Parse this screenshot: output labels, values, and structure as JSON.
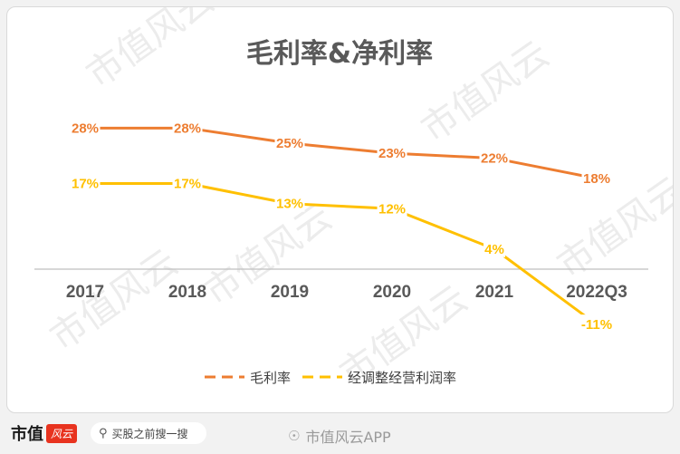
{
  "chart_data": {
    "type": "line",
    "title": "毛利率&净利率",
    "categories": [
      "2017",
      "2018",
      "2019",
      "2020",
      "2021",
      "2022Q3"
    ],
    "series": [
      {
        "name": "毛利率",
        "values": [
          28,
          28,
          25,
          23,
          22,
          18
        ],
        "labels": [
          "28%",
          "28%",
          "25%",
          "23%",
          "22%",
          "18%"
        ],
        "color": "#ED7D31"
      },
      {
        "name": "经调整经营利润率",
        "values": [
          17,
          17,
          13,
          12,
          4,
          -11
        ],
        "labels": [
          "17%",
          "17%",
          "13%",
          "12%",
          "4%",
          "-11%"
        ],
        "color": "#FFC000"
      }
    ],
    "ylim": [
      -12,
      32
    ],
    "grid": false,
    "legend": "bottom"
  },
  "watermark": "市值风云",
  "footer": {
    "brand": "市值",
    "brand_logo": "风云",
    "search_placeholder": "买股之前搜一搜",
    "weibo_watermark": "市值风云APP"
  }
}
